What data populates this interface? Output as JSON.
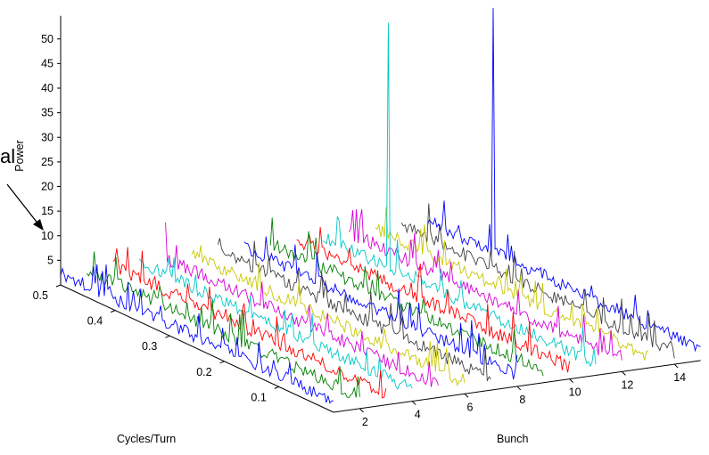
{
  "chart_data": {
    "type": "line",
    "subtype": "3d-waterfall",
    "title": "",
    "xlabel": "Bunch",
    "ylabel": "Cycles/Turn",
    "zlabel": "Power",
    "x_ticks": [
      "2",
      "4",
      "6",
      "8",
      "10",
      "12",
      "14"
    ],
    "y_ticks": [
      "0.1",
      "0.2",
      "0.3",
      "0.4",
      "0.5"
    ],
    "z_ticks": [
      "5",
      "10",
      "15",
      "20",
      "25",
      "30",
      "35",
      "40",
      "45",
      "50"
    ],
    "xlim": [
      1,
      15
    ],
    "ylim": [
      0,
      0.5
    ],
    "zlim": [
      0,
      52
    ],
    "grid": false,
    "annotation": {
      "text": "al"
    },
    "series_colors": [
      "#0000ff",
      "#008000",
      "#ff0000",
      "#00c8c8",
      "#d800d8",
      "#c8c800",
      "#404040"
    ],
    "series": [
      {
        "bunch": 1,
        "color": "#0000ff",
        "noise_level": 3.0
      },
      {
        "bunch": 2,
        "color": "#008000",
        "noise_level": 3.0
      },
      {
        "bunch": 3,
        "color": "#ff0000",
        "noise_level": 3.0
      },
      {
        "bunch": 4,
        "color": "#00c8c8",
        "noise_level": 3.0
      },
      {
        "bunch": 5,
        "color": "#d800d8",
        "noise_level": 3.0
      },
      {
        "bunch": 6,
        "color": "#c8c800",
        "noise_level": 3.0
      },
      {
        "bunch": 7,
        "color": "#404040",
        "noise_level": 3.0
      },
      {
        "bunch": 8,
        "color": "#0000ff",
        "noise_level": 3.0
      },
      {
        "bunch": 9,
        "color": "#008000",
        "noise_level": 3.0
      },
      {
        "bunch": 10,
        "color": "#ff0000",
        "noise_level": 3.0
      },
      {
        "bunch": 11,
        "color": "#00c8c8",
        "noise_level": 3.0,
        "peak": {
          "cycles_per_turn": 0.38,
          "power": 52
        }
      },
      {
        "bunch": 12,
        "color": "#d800d8",
        "noise_level": 3.0
      },
      {
        "bunch": 13,
        "color": "#c8c800",
        "noise_level": 3.0
      },
      {
        "bunch": 14,
        "color": "#404040",
        "noise_level": 3.0
      },
      {
        "bunch": 15,
        "color": "#0000ff",
        "noise_level": 3.0,
        "peak": {
          "cycles_per_turn": 0.38,
          "power": 52
        }
      }
    ]
  }
}
